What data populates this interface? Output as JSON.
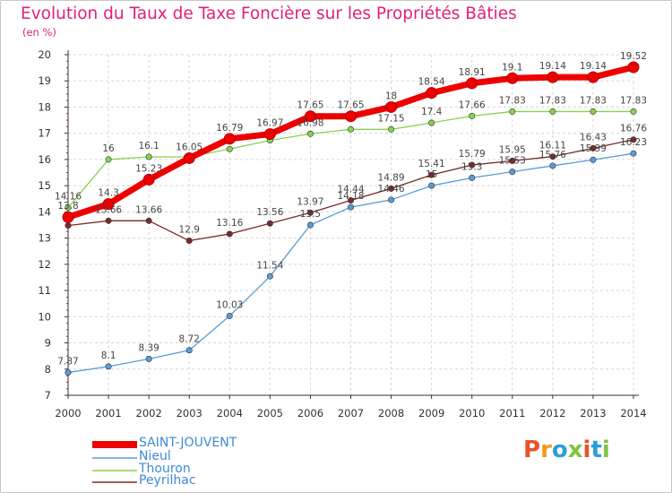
{
  "title": "Evolution du Taux de Taxe Foncière sur les Propriétés Bâties",
  "unit_label": "(en %)",
  "logo_text": "Proxiti",
  "colors": {
    "title": "#e0207a",
    "axis": "#333333",
    "grid": "#d7d7d7",
    "label": "#444444"
  },
  "chart_data": {
    "type": "line",
    "title": "Evolution du Taux de Taxe Foncière sur les Propriétés Bâties",
    "ylabel": "(en %)",
    "xlabel": "",
    "categories": [
      "2000",
      "2001",
      "2002",
      "2003",
      "2004",
      "2005",
      "2006",
      "2007",
      "2008",
      "2009",
      "2010",
      "2011",
      "2012",
      "2013",
      "2014"
    ],
    "ylim": [
      7,
      20
    ],
    "yticks": [
      7,
      8,
      9,
      10,
      11,
      12,
      13,
      14,
      15,
      16,
      17,
      18,
      19,
      20
    ],
    "grid": true,
    "legend_position": "bottom-left",
    "series": [
      {
        "name": "SAINT-JOUVENT",
        "color": "#ee0000",
        "values": [
          13.8,
          14.3,
          15.23,
          16.05,
          16.79,
          16.97,
          17.65,
          17.65,
          18,
          18.54,
          18.91,
          19.1,
          19.14,
          19.14,
          19.52
        ],
        "labels": [
          "13.8",
          "14.3",
          "15.23",
          "16.05",
          "16.79",
          "16.97",
          "17.65",
          "17.65",
          "18",
          "18.54",
          "18.91",
          "19.1",
          "19.14",
          "19.14",
          "19.52"
        ]
      },
      {
        "name": "Nieul",
        "color": "#5b9bd5",
        "values": [
          7.87,
          8.1,
          8.39,
          8.72,
          10.03,
          11.54,
          13.5,
          14.18,
          14.46,
          15,
          15.3,
          15.53,
          15.76,
          15.99,
          16.23
        ],
        "labels": [
          "7.87",
          "8.1",
          "8.39",
          "8.72",
          "10.03",
          "11.54",
          "13.5",
          "14.18",
          "14.46",
          "15",
          "15.3",
          "15.53",
          "15.76",
          "15.99",
          "16.23"
        ]
      },
      {
        "name": "Thouron",
        "color": "#88d24c",
        "values": [
          14.16,
          16,
          16.1,
          16.1,
          16.4,
          16.73,
          16.98,
          17.15,
          17.15,
          17.4,
          17.66,
          17.83,
          17.83,
          17.83,
          17.83
        ],
        "labels": [
          "14.16",
          "16",
          "16.1",
          "",
          "",
          "",
          "16.98",
          "",
          "17.15",
          "17.4",
          "17.66",
          "17.83",
          "17.83",
          "17.83",
          "17.83"
        ]
      },
      {
        "name": "Peyrilhac",
        "color": "#7a2a2a",
        "values": [
          13.48,
          13.66,
          13.66,
          12.9,
          13.16,
          13.56,
          13.97,
          14.44,
          14.89,
          15.41,
          15.79,
          15.95,
          16.11,
          16.43,
          16.76
        ],
        "labels": [
          "",
          "13.66",
          "13.66",
          "12.9",
          "13.16",
          "13.56",
          "13.97",
          "14.44",
          "14.89",
          "15.41",
          "15.79",
          "15.95",
          "16.11",
          "16.43",
          "16.76"
        ]
      }
    ]
  }
}
